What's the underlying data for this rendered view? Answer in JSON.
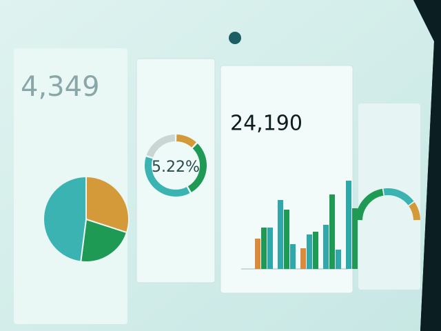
{
  "kpi": {
    "value": "4,349"
  },
  "pie": {
    "colors": [
      "#d49a3a",
      "#1f9a55",
      "#3bb3b3"
    ],
    "values": [
      30,
      22,
      48
    ]
  },
  "donut": {
    "value": "5.22%",
    "colors": [
      "#d49a3a",
      "#1f9a55",
      "#3bb3b3",
      "#c9d6d4"
    ],
    "values": [
      12,
      30,
      38,
      20
    ]
  },
  "bars": {
    "value": "24,190",
    "groups": [
      {
        "colors": [
          "#d98a3d",
          "#1f9a55",
          "#2ea8a8"
        ],
        "values": [
          22,
          30,
          30
        ]
      },
      {
        "colors": [
          "#2ea8a8",
          "#1f9a55",
          "#2ea8a8"
        ],
        "values": [
          50,
          43,
          18
        ]
      },
      {
        "colors": [
          "#d98a3d",
          "#2ea8a8",
          "#1f9a55"
        ],
        "values": [
          15,
          25,
          27
        ]
      },
      {
        "colors": [
          "#2ea8a8",
          "#1f9a55",
          "#2ea8a8"
        ],
        "values": [
          32,
          54,
          14
        ]
      },
      {
        "colors": [
          "#2ea8a8",
          "#1f9a55"
        ],
        "values": [
          64,
          44
        ]
      }
    ]
  },
  "gauge": {
    "colors": [
      "#1f9a55",
      "#3bb3b3",
      "#d49a3a"
    ],
    "values": [
      45,
      35,
      20
    ]
  }
}
